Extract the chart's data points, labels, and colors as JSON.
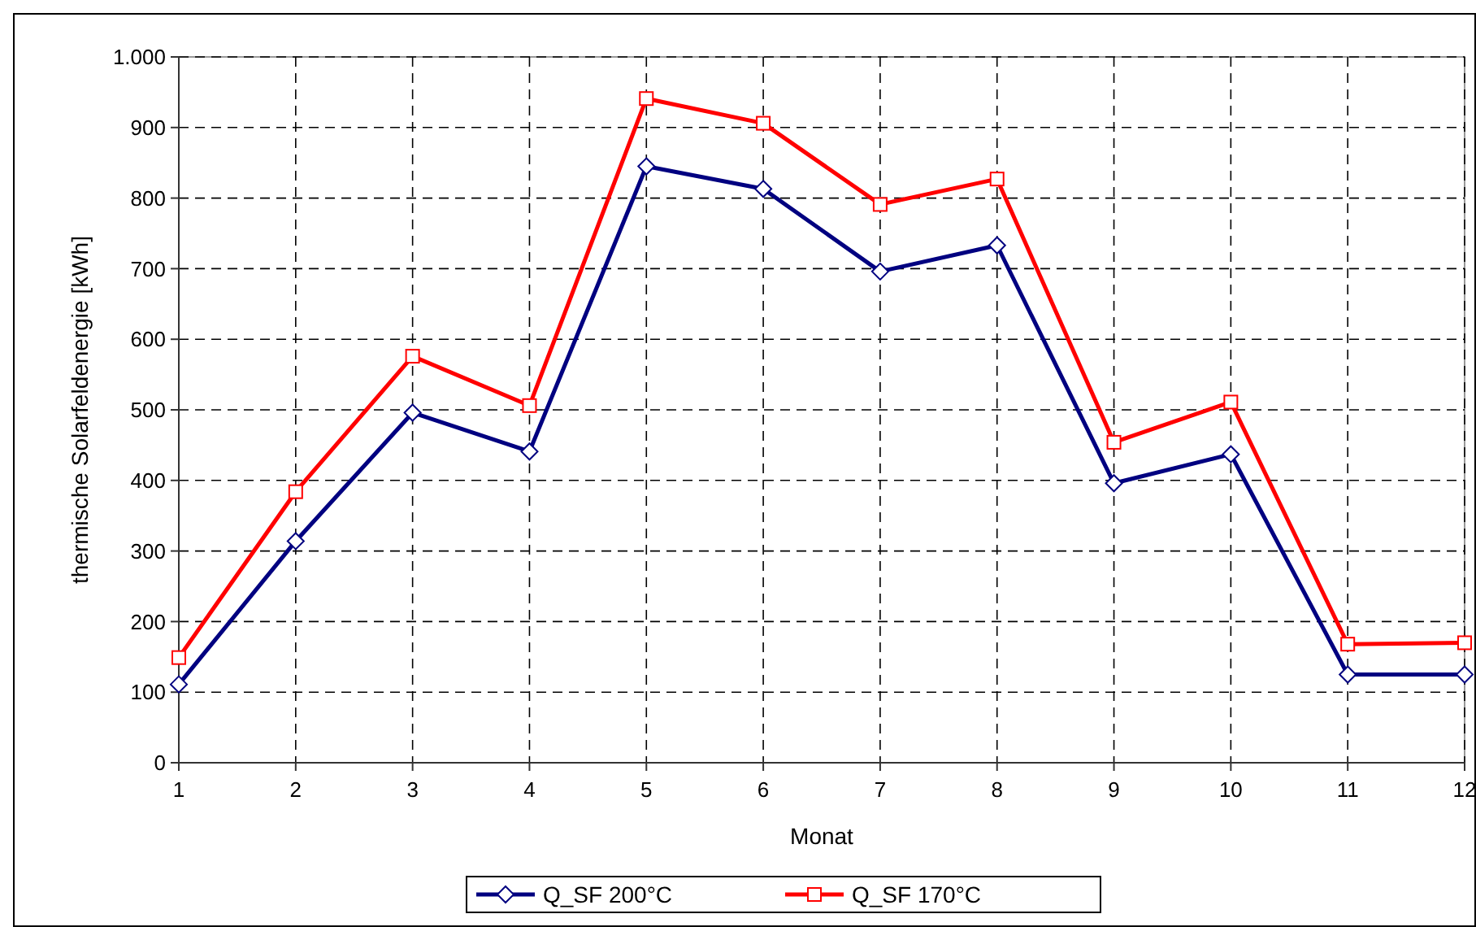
{
  "chart_data": {
    "type": "line",
    "xlabel": "Monat",
    "ylabel": "thermische Solarfeldenergie [kWh]",
    "x": [
      1,
      2,
      3,
      4,
      5,
      6,
      7,
      8,
      9,
      10,
      11,
      12
    ],
    "xlim": [
      1,
      12
    ],
    "xticks": [
      1,
      2,
      3,
      4,
      5,
      6,
      7,
      8,
      9,
      10,
      11,
      12
    ],
    "ylim": [
      0,
      1000
    ],
    "yticks": [
      0,
      100,
      200,
      300,
      400,
      500,
      600,
      700,
      800,
      900,
      {
        "value": 1000,
        "label": "1.000"
      }
    ],
    "grid": true,
    "legend": "bottom",
    "line_style": "solid",
    "series": [
      {
        "name": "Q_SF 200°C",
        "color": "#000080",
        "marker": "diamond",
        "values": [
          111,
          314,
          496,
          441,
          845,
          813,
          696,
          733,
          396,
          437,
          125,
          125
        ]
      },
      {
        "name": "Q_SF 170°C",
        "color": "#ff0000",
        "marker": "square",
        "values": [
          149,
          384,
          576,
          506,
          941,
          906,
          791,
          827,
          454,
          511,
          168,
          170
        ]
      }
    ]
  }
}
